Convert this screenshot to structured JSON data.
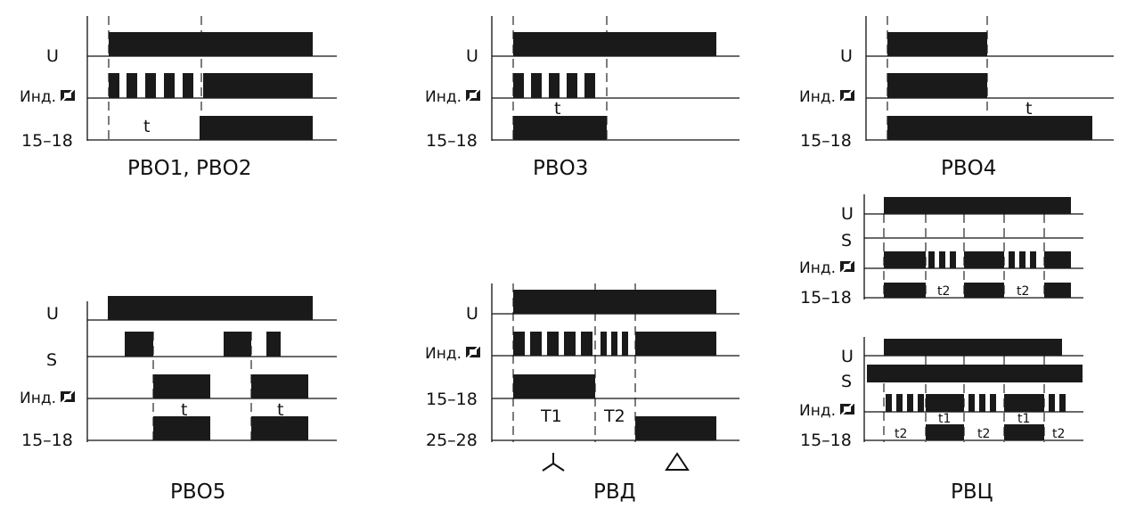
{
  "labels": {
    "u": "U",
    "s": "S",
    "ind": "Инд.",
    "out_15_18": "15–18",
    "out_25_28": "25–28",
    "t": "t",
    "t1": "t1",
    "t2": "t2",
    "T1": "T1",
    "T2": "T2"
  },
  "captions": {
    "rvo12": "РВО1, РВО2",
    "rvo3": "РВО3",
    "rvo4": "РВО4",
    "rvo5": "РВО5",
    "rvd": "РВД",
    "rvc": "РВЦ"
  },
  "symbols": {
    "star": "star-connection-icon",
    "delta": "delta-connection-icon"
  }
}
